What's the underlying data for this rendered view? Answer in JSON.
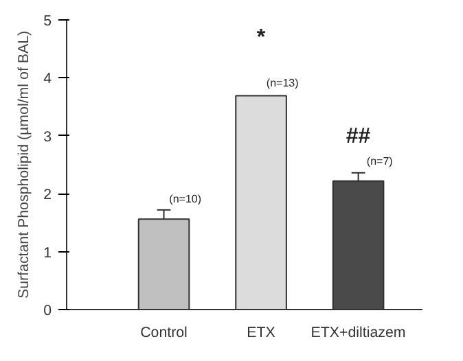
{
  "chart_data": {
    "type": "bar",
    "ylabel": "Surfactant Phospholipid (µmol/ml of BAL)",
    "categories": [
      "Control",
      "ETX",
      "ETX+diltiazem"
    ],
    "values": [
      1.56,
      3.69,
      2.22
    ],
    "errors": [
      0.16,
      null,
      0.14
    ],
    "colors": [
      "#c0c0c0",
      "#dcdcdc",
      "#4a4a4a"
    ],
    "ylim": [
      0,
      5
    ],
    "yticks": [
      0,
      1,
      2,
      3,
      4,
      5
    ],
    "grid": false,
    "annotations": [
      {
        "text": "*",
        "x": "ETX",
        "y": 3.69
      },
      {
        "text": "##",
        "x": "ETX+diltiazem",
        "y": 2.22
      },
      {
        "text": "(n=10)",
        "x": "Control",
        "y": 1.8
      },
      {
        "text": "(n=13)",
        "x": "ETX",
        "y": 3.8
      },
      {
        "text": "(n=7)",
        "x": "ETX+diltiazem",
        "y": 2.45
      }
    ]
  }
}
